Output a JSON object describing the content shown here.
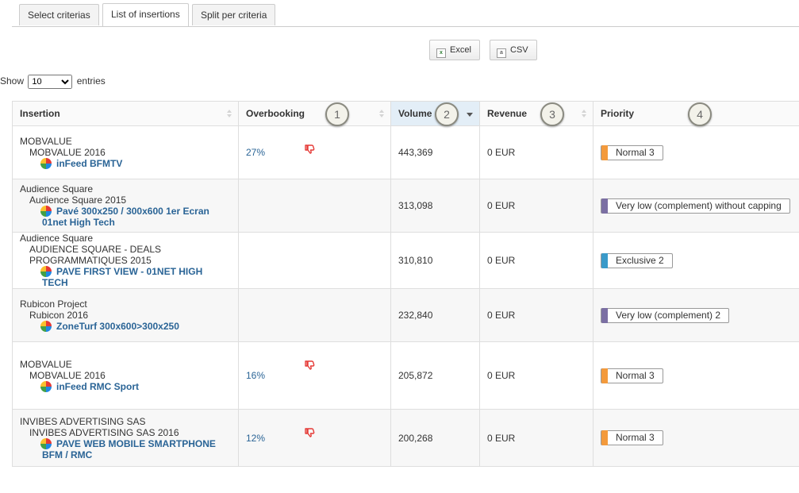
{
  "tabs": [
    "Select criterias",
    "List of insertions",
    "Split per criteria"
  ],
  "export": {
    "excel": "Excel",
    "csv": "CSV"
  },
  "show": {
    "prefix": "Show",
    "value": "10",
    "suffix": "entries"
  },
  "columns": {
    "insertion": "Insertion",
    "overbooking": "Overbooking",
    "volume": "Volume",
    "revenue": "Revenue",
    "priority": "Priority"
  },
  "callouts": [
    "1",
    "2",
    "3",
    "4"
  ],
  "colors": {
    "normal": "#f39a3c",
    "very_low": "#7b6fa3",
    "exclusive": "#3a9ac9",
    "link": "#2a6496"
  },
  "rows": [
    {
      "advertiser": "MOBVALUE",
      "campaign": "MOBVALUE 2016",
      "line": "inFeed BFMTV",
      "overbooking": "27%",
      "volume": "443,369",
      "revenue": "0 EUR",
      "priority": "Normal 3",
      "priority_type": "normal"
    },
    {
      "advertiser": "Audience Square",
      "campaign": "Audience Square 2015",
      "line": "Pavé 300x250 / 300x600 1er Ecran 01net High Tech",
      "overbooking": "",
      "volume": "313,098",
      "revenue": "0 EUR",
      "priority": "Very low (complement) without capping",
      "priority_type": "very_low"
    },
    {
      "advertiser": "Audience Square",
      "campaign": "AUDIENCE SQUARE - DEALS PROGRAMMATIQUES 2015",
      "line": "PAVE FIRST VIEW - 01NET HIGH TECH",
      "overbooking": "",
      "volume": "310,810",
      "revenue": "0 EUR",
      "priority": "Exclusive 2",
      "priority_type": "exclusive"
    },
    {
      "advertiser": "Rubicon Project",
      "campaign": "Rubicon 2016",
      "line": "ZoneTurf 300x600>300x250",
      "overbooking": "",
      "volume": "232,840",
      "revenue": "0 EUR",
      "priority": "Very low (complement) 2",
      "priority_type": "very_low"
    },
    {
      "advertiser": "MOBVALUE",
      "campaign": "MOBVALUE 2016",
      "line": "inFeed RMC Sport",
      "overbooking": "16%",
      "volume": "205,872",
      "revenue": "0 EUR",
      "priority": "Normal 3",
      "priority_type": "normal"
    },
    {
      "advertiser": "INVIBES ADVERTISING SAS",
      "campaign": "INVIBES ADVERTISING SAS 2016",
      "line": "PAVE WEB MOBILE SMARTPHONE BFM / RMC",
      "overbooking": "12%",
      "volume": "200,268",
      "revenue": "0 EUR",
      "priority": "Normal 3",
      "priority_type": "normal"
    }
  ]
}
